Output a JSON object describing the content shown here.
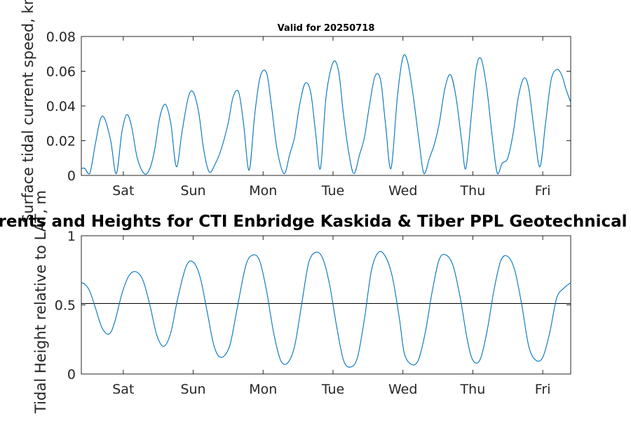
{
  "main_title": "Currents and Heights for CTI Enbridge  Kaskida & Tiber PPL Geotechnical and...",
  "chart_data": [
    {
      "type": "line",
      "title": "Valid for 20250718",
      "ylabel": "Surface tidal current speed, kn",
      "xlabel": "",
      "ylim": [
        0,
        0.08
      ],
      "yticks": [
        0,
        0.02,
        0.04,
        0.06,
        0.08
      ],
      "ytick_labels": [
        "0",
        "0.02",
        "0.04",
        "0.06",
        "0.08"
      ],
      "xlim": [
        0,
        7
      ],
      "xticks": [
        0.6,
        1.6,
        2.6,
        3.6,
        4.6,
        5.6,
        6.6
      ],
      "xtick_labels": [
        "Sat",
        "Sun",
        "Mon",
        "Tue",
        "Wed",
        "Thu",
        "Fri"
      ],
      "grid": false,
      "series": [
        {
          "color": "#0072bd",
          "x": [
            0,
            0.05,
            0.12,
            0.2,
            0.27,
            0.33,
            0.42,
            0.5,
            0.58,
            0.65,
            0.72,
            0.8,
            0.9,
            0.98,
            1.05,
            1.12,
            1.2,
            1.28,
            1.36,
            1.44,
            1.53,
            1.6,
            1.68,
            1.75,
            1.83,
            1.92,
            2.0,
            2.1,
            2.17,
            2.25,
            2.32,
            2.4,
            2.48,
            2.56,
            2.65,
            2.72,
            2.8,
            2.9,
            2.98,
            3.05,
            3.12,
            3.2,
            3.28,
            3.35,
            3.42,
            3.5,
            3.6,
            3.68,
            3.75,
            3.83,
            3.9,
            3.98,
            4.05,
            4.12,
            4.2,
            4.28,
            4.35,
            4.43,
            4.52,
            4.6,
            4.67,
            4.75,
            4.83,
            4.9,
            4.98,
            5.05,
            5.12,
            5.2,
            5.28,
            5.36,
            5.44,
            5.5,
            5.58,
            5.65,
            5.72,
            5.8,
            5.87,
            5.95,
            6.02,
            6.1,
            6.18,
            6.25,
            6.33,
            6.4,
            6.48,
            6.56,
            6.64,
            6.72,
            6.8,
            6.87,
            6.93,
            7.0
          ],
          "values": [
            0.004,
            0.004,
            0.001,
            0.018,
            0.032,
            0.033,
            0.02,
            0.001,
            0.025,
            0.035,
            0.028,
            0.01,
            0.001,
            0.004,
            0.015,
            0.033,
            0.041,
            0.03,
            0.005,
            0.025,
            0.045,
            0.048,
            0.036,
            0.015,
            0.002,
            0.007,
            0.015,
            0.03,
            0.045,
            0.048,
            0.03,
            0.003,
            0.035,
            0.057,
            0.059,
            0.04,
            0.015,
            0.001,
            0.012,
            0.022,
            0.04,
            0.053,
            0.048,
            0.025,
            0.004,
            0.045,
            0.065,
            0.06,
            0.035,
            0.012,
            0.001,
            0.012,
            0.022,
            0.04,
            0.057,
            0.055,
            0.03,
            0.004,
            0.045,
            0.068,
            0.065,
            0.045,
            0.02,
            0.001,
            0.01,
            0.018,
            0.03,
            0.05,
            0.058,
            0.045,
            0.02,
            0.004,
            0.035,
            0.062,
            0.067,
            0.05,
            0.025,
            0.001,
            0.007,
            0.01,
            0.025,
            0.045,
            0.056,
            0.05,
            0.025,
            0.005,
            0.03,
            0.055,
            0.061,
            0.058,
            0.05,
            0.042
          ]
        }
      ]
    },
    {
      "type": "line",
      "title": "",
      "ylabel": "Tidal Height relative to LAT, m",
      "xlabel": "",
      "ylim": [
        0,
        1
      ],
      "yticks": [
        0,
        0.5,
        1
      ],
      "ytick_labels": [
        "0",
        "0.5",
        "1"
      ],
      "xlim": [
        0,
        7
      ],
      "xticks": [
        0.6,
        1.6,
        2.6,
        3.6,
        4.6,
        5.6,
        6.6
      ],
      "xtick_labels": [
        "Sat",
        "Sun",
        "Mon",
        "Tue",
        "Wed",
        "Thu",
        "Fri"
      ],
      "grid": false,
      "reference_line": 0.51,
      "series": [
        {
          "color": "#0072bd",
          "x": [
            0,
            0.05,
            0.12,
            0.2,
            0.3,
            0.4,
            0.48,
            0.58,
            0.68,
            0.78,
            0.88,
            0.98,
            1.08,
            1.18,
            1.28,
            1.38,
            1.5,
            1.6,
            1.7,
            1.8,
            1.9,
            2.0,
            2.12,
            2.22,
            2.35,
            2.45,
            2.55,
            2.65,
            2.75,
            2.85,
            2.95,
            3.05,
            3.15,
            3.25,
            3.35,
            3.45,
            3.55,
            3.65,
            3.75,
            3.85,
            3.95,
            4.05,
            4.15,
            4.25,
            4.35,
            4.45,
            4.55,
            4.62,
            4.72,
            4.82,
            4.92,
            5.02,
            5.12,
            5.22,
            5.32,
            5.42,
            5.52,
            5.6,
            5.7,
            5.8,
            5.9,
            6.0,
            6.1,
            6.2,
            6.3,
            6.4,
            6.5,
            6.6,
            6.7,
            6.8,
            6.9,
            7.0
          ],
          "values": [
            0.66,
            0.65,
            0.6,
            0.48,
            0.33,
            0.29,
            0.38,
            0.58,
            0.71,
            0.74,
            0.68,
            0.5,
            0.28,
            0.2,
            0.3,
            0.55,
            0.78,
            0.81,
            0.7,
            0.45,
            0.2,
            0.12,
            0.2,
            0.45,
            0.78,
            0.86,
            0.82,
            0.6,
            0.3,
            0.1,
            0.08,
            0.2,
            0.5,
            0.8,
            0.88,
            0.84,
            0.65,
            0.35,
            0.1,
            0.05,
            0.12,
            0.4,
            0.75,
            0.88,
            0.85,
            0.7,
            0.4,
            0.15,
            0.07,
            0.1,
            0.3,
            0.6,
            0.83,
            0.86,
            0.78,
            0.55,
            0.25,
            0.1,
            0.1,
            0.3,
            0.6,
            0.82,
            0.85,
            0.75,
            0.5,
            0.2,
            0.1,
            0.12,
            0.3,
            0.55,
            0.62,
            0.66
          ]
        }
      ]
    }
  ]
}
